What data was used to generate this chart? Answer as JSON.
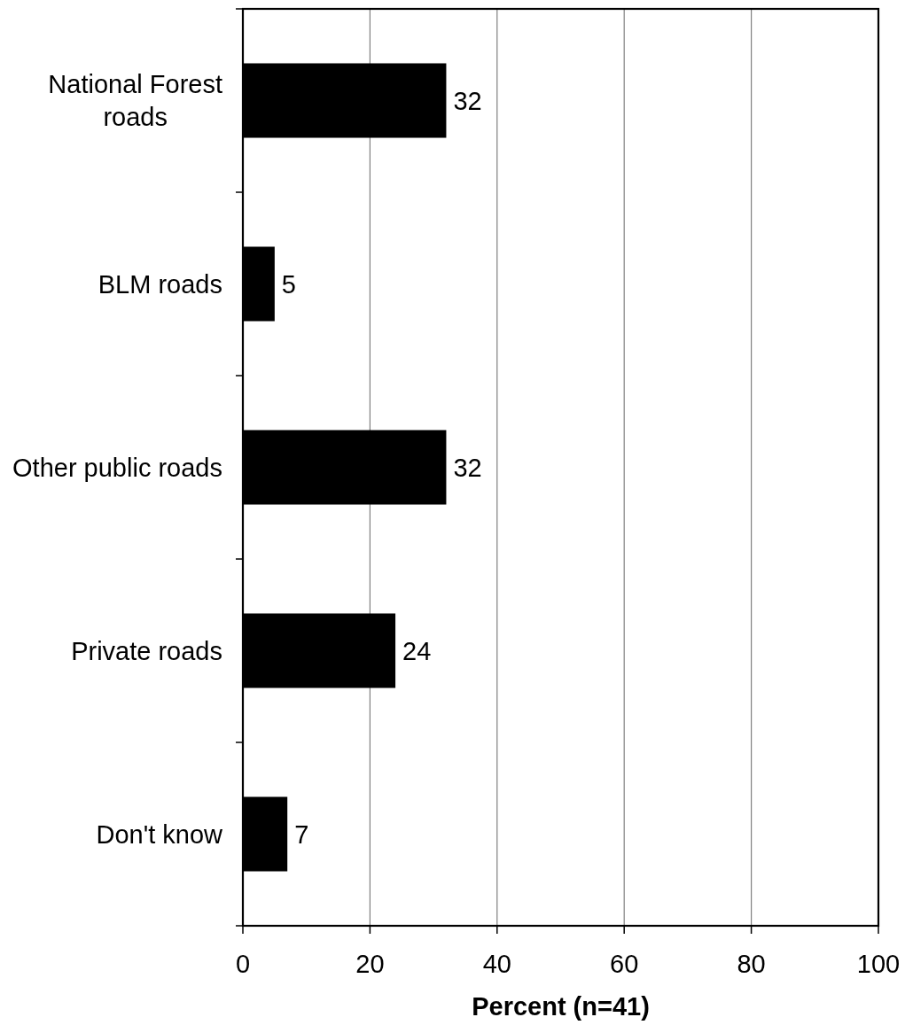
{
  "chart_data": {
    "type": "bar",
    "orientation": "horizontal",
    "categories": [
      "National Forest roads",
      "BLM roads",
      "Other public roads",
      "Private roads",
      "Don't know"
    ],
    "values": [
      32,
      5,
      32,
      24,
      7
    ],
    "color": "#000000",
    "xlabel": "Percent (n=41)",
    "xlim": [
      0,
      100
    ],
    "xticks": [
      0,
      20,
      40,
      60,
      80,
      100
    ],
    "grid": "x",
    "data_labels": true
  }
}
